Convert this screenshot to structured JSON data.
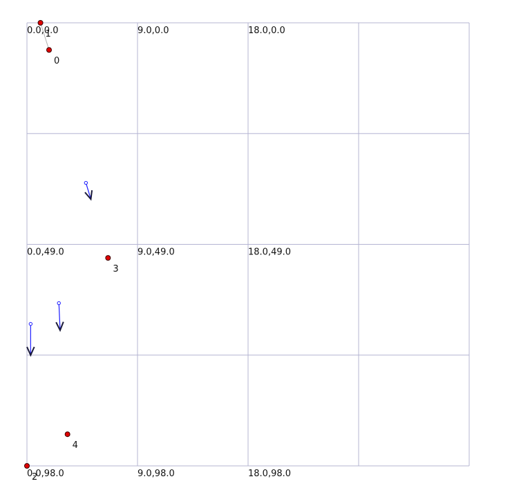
{
  "grid": {
    "x_values": [
      0,
      9,
      18,
      27,
      36
    ],
    "y_values": [
      0,
      24.5,
      49,
      73.5,
      98
    ]
  },
  "coordinate_labels": [
    {
      "text": "0.0,0.0",
      "x": 0,
      "y": 0
    },
    {
      "text": "9.0,0.0",
      "x": 9,
      "y": 0
    },
    {
      "text": "18.0,0.0",
      "x": 18,
      "y": 0
    },
    {
      "text": "0.0,49.0",
      "x": 0,
      "y": 49
    },
    {
      "text": "9.0,49.0",
      "x": 9,
      "y": 49
    },
    {
      "text": "18.0,49.0",
      "x": 18,
      "y": 49
    },
    {
      "text": "0.0,98.0",
      "x": 0,
      "y": 98
    },
    {
      "text": "9.0,98.0",
      "x": 9,
      "y": 98
    },
    {
      "text": "18.0,98.0",
      "x": 18,
      "y": 98
    }
  ],
  "nodes": [
    {
      "label": "0",
      "x": 1.8,
      "y": 6.0
    },
    {
      "label": "1",
      "x": 1.1,
      "y": 0.0
    },
    {
      "label": "2",
      "x": 0.0,
      "y": 98.0
    },
    {
      "label": "3",
      "x": 6.6,
      "y": 52.0
    },
    {
      "label": "4",
      "x": 3.3,
      "y": 91.0
    }
  ],
  "links": [
    {
      "from": "1",
      "to": "0"
    }
  ],
  "vectors": [
    {
      "x0": 4.8,
      "y0": 35.4,
      "x1": 5.2,
      "y1": 39.0
    },
    {
      "x0": 2.6,
      "y0": 62.0,
      "x1": 2.7,
      "y1": 68.0
    },
    {
      "x0": 0.3,
      "y0": 66.6,
      "x1": 0.3,
      "y1": 73.5
    }
  ],
  "colors": {
    "grid": "#b4b4d2",
    "node_fill": "#e00000",
    "vector_stem": "#1a1aff",
    "vector_head": "#1a1a3a"
  }
}
